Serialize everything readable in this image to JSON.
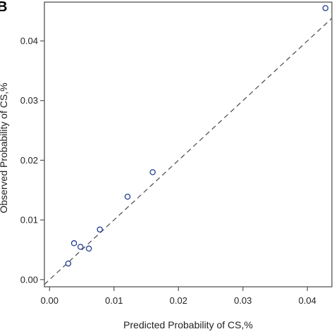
{
  "panel_label": "B",
  "colors": {
    "point": "#1f3f8f",
    "frame": "#555555",
    "diagonal": "#555555"
  },
  "chart_data": {
    "type": "scatter",
    "panel": "B",
    "xlabel": "Predicted Probability of CS,%",
    "ylabel": "Observed Probability of CS,%",
    "xlim": [
      -0.0008,
      0.0438
    ],
    "ylim": [
      -0.0012,
      0.0465
    ],
    "x_ticks": [
      0.0,
      0.01,
      0.02,
      0.03,
      0.04
    ],
    "x_tick_labels": [
      "0.00",
      "0.01",
      "0.02",
      "0.03",
      "0.04"
    ],
    "y_ticks": [
      0.0,
      0.01,
      0.02,
      0.03,
      0.04
    ],
    "y_tick_labels": [
      "0.00",
      "0.01",
      "0.02",
      "0.03",
      "0.04"
    ],
    "reference_line": "y = x (dashed)",
    "grid": false,
    "marker": "open circle",
    "points": [
      {
        "x": 0.0029,
        "y": 0.0027
      },
      {
        "x": 0.0038,
        "y": 0.0061
      },
      {
        "x": 0.0048,
        "y": 0.0055
      },
      {
        "x": 0.0061,
        "y": 0.0052
      },
      {
        "x": 0.0078,
        "y": 0.0084
      },
      {
        "x": 0.0121,
        "y": 0.0139
      },
      {
        "x": 0.016,
        "y": 0.018
      },
      {
        "x": 0.0428,
        "y": 0.0455
      }
    ]
  }
}
